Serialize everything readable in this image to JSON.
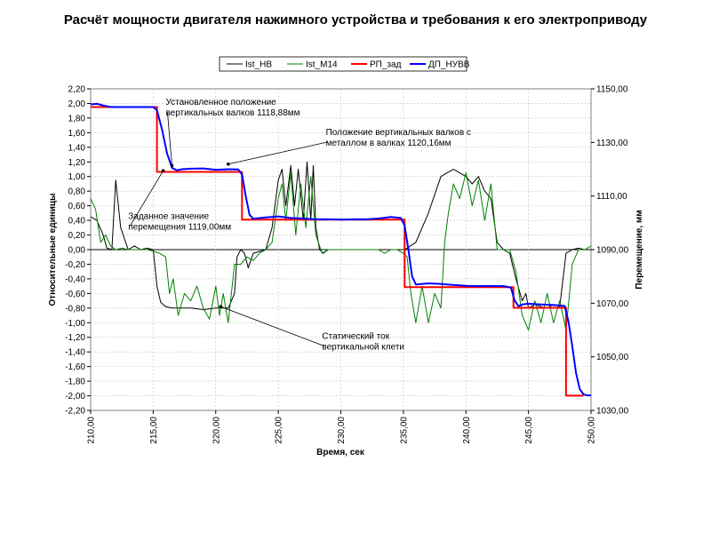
{
  "title": "Расчёт мощности двигателя нажимного устройства и требования к его электроприводу",
  "chart_data": {
    "type": "line",
    "xlabel": "Время, сек",
    "ylabel_left": "Относительные единицы",
    "ylabel_right": "Перемещение, мм",
    "xlim": [
      210,
      250
    ],
    "ylim_left": [
      -2.2,
      2.2
    ],
    "ylim_right": [
      1030,
      1150
    ],
    "grid": true,
    "legend": {
      "placement": "top-center"
    },
    "x_ticks": [
      "210,00",
      "215,00",
      "220,00",
      "225,00",
      "230,00",
      "235,00",
      "240,00",
      "245,00",
      "250,00"
    ],
    "y_left_ticks": [
      "2,20",
      "2,00",
      "1,80",
      "1,60",
      "1,40",
      "1,20",
      "1,00",
      "0,80",
      "0,60",
      "0,40",
      "0,20",
      "0,00",
      "-0,20",
      "-0,40",
      "-0,60",
      "-0,80",
      "-1,00",
      "-1,20",
      "-1,40",
      "-1,60",
      "-1,80",
      "-2,00",
      "-2,20"
    ],
    "y_right_ticks": [
      "1150,00",
      "1130,00",
      "1110,00",
      "1090,00",
      "1070,00",
      "1050,00",
      "1030,00"
    ],
    "series": [
      {
        "name": "Ist_НВ",
        "color": "#000000",
        "axis": "left",
        "x": [
          210,
          210.5,
          211,
          211.3,
          211.7,
          212,
          212.4,
          213,
          213.5,
          214,
          214.5,
          215,
          215.3,
          215.6,
          216,
          216.5,
          217,
          218,
          219,
          220,
          221,
          221.5,
          221.7,
          222,
          222.3,
          222.6,
          223,
          224,
          224.5,
          225,
          225.3,
          225.6,
          226,
          226.3,
          226.6,
          227,
          227.3,
          227.6,
          227.8,
          228,
          228.3,
          228.6,
          229,
          230,
          231,
          232,
          233,
          234,
          235,
          235.3,
          236,
          237,
          238,
          238.5,
          239,
          239.5,
          240,
          240.5,
          241,
          241.5,
          242,
          242.5,
          243,
          243.5,
          244,
          244.5,
          244.8,
          245,
          245.5,
          246,
          246.5,
          247,
          247.5,
          248,
          248.5,
          249,
          249.5,
          250
        ],
        "y": [
          0.45,
          0.4,
          0.2,
          0.02,
          0.0,
          0.95,
          0.3,
          0.0,
          0.05,
          0.0,
          0.02,
          0.0,
          -0.5,
          -0.72,
          -0.78,
          -0.8,
          -0.8,
          -0.8,
          -0.82,
          -0.8,
          -0.8,
          -0.6,
          -0.1,
          0.0,
          -0.05,
          -0.25,
          -0.05,
          0.0,
          0.3,
          0.95,
          1.1,
          0.6,
          1.15,
          0.6,
          1.1,
          0.4,
          1.2,
          0.4,
          1.15,
          0.3,
          0.0,
          -0.05,
          0.0,
          0.0,
          0.0,
          0.0,
          0.0,
          0.0,
          0.0,
          0.02,
          0.1,
          0.5,
          1.0,
          1.05,
          1.1,
          1.05,
          1.0,
          0.9,
          1.0,
          0.8,
          0.7,
          0.1,
          0.0,
          -0.05,
          -0.4,
          -0.7,
          -0.6,
          -0.8,
          -0.75,
          -0.78,
          -0.8,
          -0.75,
          -0.78,
          -0.05,
          0.0,
          0.02,
          0.0,
          0.0
        ]
      },
      {
        "name": "Ist_М14",
        "color": "#008000",
        "axis": "left",
        "x": [
          210,
          210.4,
          210.8,
          211.2,
          211.6,
          212,
          212.5,
          213,
          213.5,
          214,
          214.5,
          215,
          215.5,
          216,
          216.3,
          216.6,
          217,
          217.5,
          218,
          218.5,
          219,
          219.5,
          220,
          220.3,
          220.6,
          221,
          221.5,
          222,
          222.5,
          223,
          223.5,
          224,
          224.5,
          225,
          225.3,
          225.6,
          226,
          226.4,
          226.8,
          227.2,
          227.6,
          228,
          228.5,
          229,
          229.5,
          230,
          230.5,
          231,
          231.5,
          232,
          232.5,
          233,
          233.5,
          234,
          234.5,
          235,
          235.3,
          235.6,
          236,
          236.5,
          237,
          237.5,
          238,
          238.3,
          238.6,
          239,
          239.5,
          240,
          240.5,
          241,
          241.5,
          242,
          242.5,
          243,
          243.5,
          244,
          244.5,
          245,
          245.5,
          246,
          246.5,
          247,
          247.5,
          248,
          248.5,
          249,
          249.5,
          250
        ],
        "y": [
          0.7,
          0.55,
          0.1,
          0.2,
          0.05,
          0.0,
          0.02,
          0.0,
          0.0,
          0.0,
          0.0,
          -0.02,
          -0.05,
          -0.1,
          -0.6,
          -0.4,
          -0.9,
          -0.6,
          -0.7,
          -0.5,
          -0.8,
          -0.95,
          -0.5,
          -0.9,
          -0.6,
          -1.0,
          -0.2,
          -0.2,
          -0.1,
          -0.15,
          -0.05,
          0.0,
          0.1,
          0.7,
          0.9,
          0.4,
          1.05,
          0.2,
          0.9,
          0.3,
          1.0,
          0.2,
          -0.05,
          0.0,
          0.0,
          0.0,
          0.0,
          0.0,
          0.0,
          0.0,
          0.0,
          0.0,
          -0.05,
          0.0,
          0.0,
          -0.05,
          -0.1,
          -0.6,
          -1.0,
          -0.5,
          -1.0,
          -0.6,
          -0.8,
          0.1,
          0.5,
          0.9,
          0.7,
          1.05,
          0.6,
          0.95,
          0.4,
          0.9,
          0.0,
          0.0,
          0.0,
          -0.3,
          -0.9,
          -1.1,
          -0.7,
          -1.0,
          -0.6,
          -1.0,
          -0.7,
          -1.1,
          -0.2,
          0.0,
          0.0,
          0.05
        ]
      },
      {
        "name": "РП_зад",
        "color": "#ff0000",
        "axis": "right",
        "x": [
          210,
          215.3,
          215.3,
          222.1,
          222.1,
          235.1,
          235.1,
          243.8,
          243.8,
          248.0,
          248.0,
          249.4
        ],
        "y": [
          1143.2,
          1143.2,
          1119.0,
          1119.0,
          1101.2,
          1101.2,
          1076.0,
          1076.0,
          1068.3,
          1068.3,
          1035.5,
          1035.5
        ]
      },
      {
        "name": "ДП_НУВВ",
        "color": "#0000ff",
        "axis": "right",
        "x": [
          210,
          210.5,
          211,
          211.5,
          212,
          213,
          214,
          215,
          215.3,
          215.7,
          216.1,
          216.5,
          216.9,
          217.3,
          218,
          219,
          220,
          221,
          221.8,
          222.1,
          222.4,
          222.7,
          223,
          224,
          225,
          226,
          227,
          228,
          229,
          230,
          231,
          232,
          233,
          234,
          234.8,
          235.1,
          235.4,
          235.7,
          236,
          237,
          238,
          239,
          240,
          241,
          242,
          243,
          243.6,
          243.9,
          244.2,
          244.5,
          245,
          246,
          247,
          247.9,
          248.2,
          248.5,
          248.8,
          249.1,
          249.4,
          249.7,
          250
        ],
        "y": [
          1144.2,
          1144.4,
          1143.8,
          1143.3,
          1143.2,
          1143.2,
          1143.2,
          1143.2,
          1142,
          1135,
          1126,
          1120.5,
          1119.6,
          1120.0,
          1120.2,
          1120.3,
          1119.8,
          1120.0,
          1119.9,
          1118,
          1110,
          1103,
          1101.5,
          1102.0,
          1102.4,
          1101.8,
          1101.6,
          1101.3,
          1101.3,
          1101.2,
          1101.3,
          1101.3,
          1101.6,
          1102.2,
          1101.8,
          1099,
          1090,
          1080,
          1077.0,
          1077.4,
          1077.2,
          1076.8,
          1076.5,
          1076.4,
          1076.4,
          1076.4,
          1075.8,
          1071,
          1068.9,
          1069.5,
          1069.8,
          1069.5,
          1069.3,
          1069.0,
          1063,
          1054,
          1044,
          1038,
          1036,
          1035.6,
          1035.6
        ]
      }
    ],
    "annotations": [
      {
        "lines": [
          "Установленное положение",
          "вертикальных валков 1118,88мм"
        ],
        "x": 216.0,
        "y": 1.98,
        "tx": 216.5,
        "ty": 1.15
      },
      {
        "lines": [
          "Положение вертикальных валков с",
          "металлом в валках 1120,16мм"
        ],
        "x": 228.8,
        "y": 1.57,
        "tx": 221.0,
        "ty": 1.17
      },
      {
        "lines": [
          "Заданное значение",
          "перемещения 1119,00мм"
        ],
        "x": 213.0,
        "y": 0.42,
        "tx": 215.8,
        "ty": 1.08
      },
      {
        "lines": [
          "Статический ток",
          "вертикальной клети"
        ],
        "x": 228.5,
        "y": -1.22,
        "tx": 220.4,
        "ty": -0.78
      }
    ]
  }
}
